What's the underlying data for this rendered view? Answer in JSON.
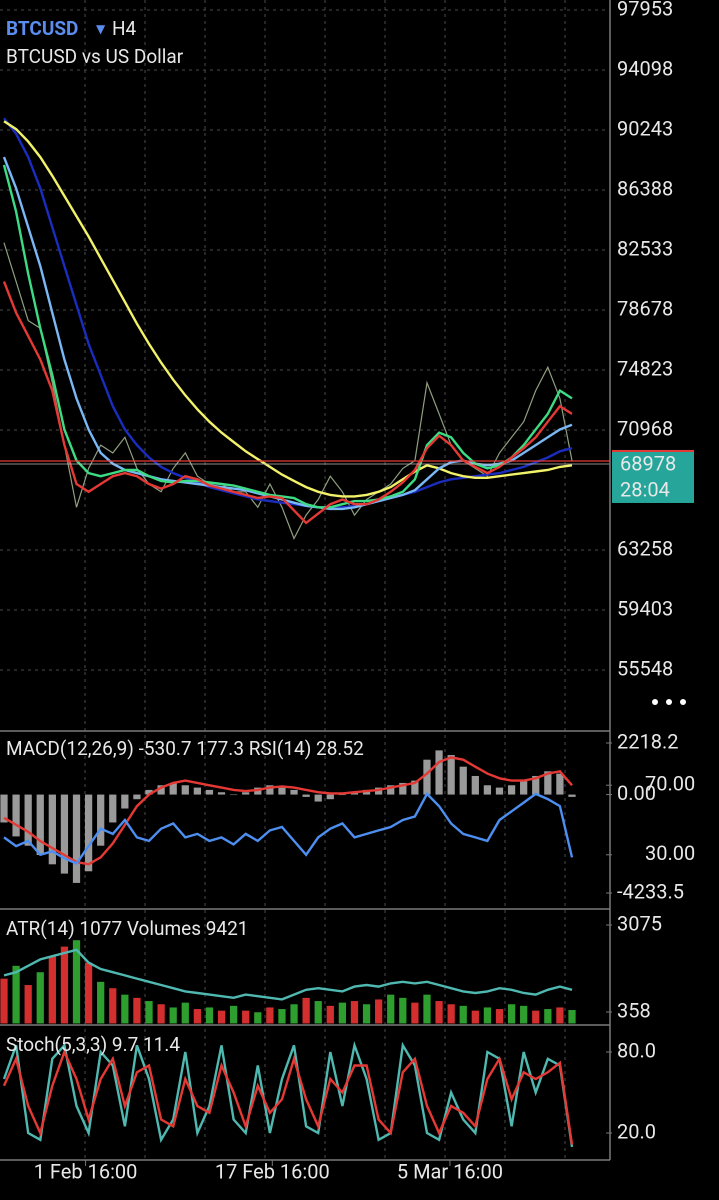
{
  "chart_data": [
    {
      "type": "line",
      "title": "BTCUSD",
      "timeframe": "H4",
      "subtitle": "BTCUSD vs US Dollar",
      "last_price": 68978,
      "countdown": "28:04",
      "price_color": "#e53935",
      "box_color": "#26a69a",
      "xlim": [
        0,
        47
      ],
      "ylim": [
        51693,
        98596
      ],
      "grid": true,
      "yticks": [
        97953,
        94098,
        90243,
        86388,
        82533,
        78678,
        74823,
        70968,
        63258,
        59403,
        55548
      ],
      "series": [
        {
          "color": "#8f9f7f",
          "values": [
            83000,
            80500,
            78000,
            77500,
            74000,
            70000,
            66000,
            68500,
            70000,
            69500,
            70500,
            68500,
            67500,
            67000,
            68500,
            69500,
            68000,
            67500,
            67500,
            67000,
            67000,
            66000,
            67500,
            66000,
            64000,
            65500,
            66500,
            68000,
            67000,
            65500,
            66500,
            67000,
            67500,
            68500,
            69000,
            74000,
            72000,
            70000,
            69000,
            68500,
            68000,
            69500,
            70500,
            71500,
            73500,
            75000,
            73000,
            69000
          ]
        },
        {
          "color": "#1a2dbf",
          "values": [
            91000,
            90000,
            88500,
            86500,
            84000,
            81500,
            79000,
            76500,
            74500,
            72500,
            71000,
            70000,
            69200,
            68600,
            68200,
            67900,
            67600,
            67300,
            67100,
            66900,
            66700,
            66500,
            66400,
            66300,
            66200,
            66100,
            66000,
            66000,
            66000,
            66100,
            66200,
            66400,
            66600,
            66800,
            67000,
            67300,
            67600,
            67800,
            67900,
            68000,
            68100,
            68200,
            68400,
            68600,
            68900,
            69200,
            69600,
            69800
          ]
        },
        {
          "color": "#f2f26a",
          "values": [
            90800,
            90300,
            89500,
            88500,
            87300,
            86000,
            84700,
            83400,
            82000,
            80600,
            79200,
            77800,
            76500,
            75300,
            74200,
            73200,
            72300,
            71500,
            70800,
            70200,
            69600,
            69100,
            68600,
            68100,
            67700,
            67300,
            67000,
            66800,
            66700,
            66700,
            66800,
            67000,
            67300,
            67800,
            68300,
            68700,
            68500,
            68200,
            68000,
            67900,
            67900,
            68000,
            68100,
            68200,
            68300,
            68400,
            68600,
            68700
          ]
        },
        {
          "color": "#7ab8f5",
          "values": [
            88500,
            86500,
            84000,
            81500,
            78500,
            75500,
            73000,
            71000,
            69500,
            68800,
            68400,
            68200,
            68000,
            67800,
            67700,
            67600,
            67500,
            67400,
            67300,
            67200,
            67100,
            66900,
            66700,
            66500,
            66300,
            66100,
            66000,
            65900,
            65900,
            66000,
            66200,
            66400,
            66600,
            66800,
            67100,
            67800,
            68500,
            68900,
            69000,
            68800,
            68700,
            68800,
            69000,
            69500,
            70000,
            70500,
            71000,
            71300
          ]
        },
        {
          "color": "#3ddc84",
          "values": [
            88000,
            85000,
            81000,
            77500,
            74500,
            71000,
            69000,
            68200,
            68000,
            68200,
            68400,
            68400,
            68000,
            67700,
            67600,
            67700,
            67700,
            67600,
            67500,
            67400,
            67200,
            67000,
            66800,
            66700,
            66600,
            66200,
            66000,
            66000,
            66200,
            66400,
            66400,
            66500,
            66700,
            67000,
            67800,
            70000,
            70800,
            70500,
            69500,
            68800,
            68500,
            68700,
            69200,
            70000,
            71000,
            72000,
            73500,
            73000
          ]
        },
        {
          "color": "#e53935",
          "values": [
            80500,
            78500,
            77000,
            75500,
            73500,
            70000,
            67500,
            67000,
            67500,
            68000,
            68200,
            68000,
            67500,
            67200,
            67500,
            68000,
            67800,
            67400,
            67200,
            67000,
            66800,
            66600,
            66700,
            66600,
            65800,
            65000,
            65600,
            66200,
            66500,
            66200,
            66200,
            66500,
            67000,
            67600,
            68400,
            69800,
            70600,
            70000,
            69000,
            68600,
            68200,
            68600,
            69200,
            69800,
            70500,
            71500,
            72500,
            72000
          ]
        }
      ]
    },
    {
      "type": "combo",
      "title": "MACD(12,26,9) -530.7 177.3 RSI(14) 28.52",
      "xlim": [
        0,
        47
      ],
      "ylim": [
        -4836,
        2648
      ],
      "y2lim": [
        0,
        100
      ],
      "yticks": [
        2218.2,
        {
          "value": 0,
          "label": "0.00"
        },
        -4233.5
      ],
      "y2ticks": [
        {
          "value": 70,
          "label": "70.00"
        },
        {
          "value": 30,
          "label": "30.00"
        }
      ],
      "series": [
        {
          "style": "bar",
          "color": "#9a9a9a",
          "values": [
            -1200,
            -1800,
            -2200,
            -2600,
            -3000,
            -3400,
            -3800,
            -3300,
            -2200,
            -1200,
            -600,
            -200,
            200,
            400,
            500,
            400,
            300,
            200,
            100,
            0,
            100,
            300,
            400,
            300,
            200,
            -100,
            -300,
            -200,
            0,
            100,
            200,
            300,
            400,
            500,
            600,
            1500,
            1900,
            1700,
            1200,
            800,
            400,
            300,
            400,
            600,
            800,
            1000,
            900,
            -100
          ]
        },
        {
          "style": "line",
          "color": "#e53935",
          "values": [
            -1000,
            -1300,
            -1600,
            -2000,
            -2300,
            -2600,
            -2900,
            -3000,
            -2700,
            -2100,
            -1300,
            -500,
            0,
            300,
            500,
            600,
            500,
            400,
            300,
            200,
            150,
            200,
            300,
            350,
            300,
            200,
            100,
            50,
            50,
            100,
            150,
            200,
            300,
            400,
            500,
            900,
            1400,
            1600,
            1500,
            1200,
            900,
            700,
            600,
            600,
            700,
            900,
            1000,
            400
          ]
        },
        {
          "style": "line",
          "axis": "y2",
          "color": "#4d8ff0",
          "values": [
            40,
            35,
            38,
            30,
            32,
            28,
            25,
            35,
            45,
            42,
            50,
            40,
            38,
            45,
            48,
            40,
            42,
            38,
            40,
            36,
            42,
            38,
            44,
            46,
            38,
            30,
            40,
            45,
            48,
            40,
            42,
            44,
            46,
            50,
            52,
            65,
            58,
            48,
            42,
            40,
            38,
            50,
            55,
            60,
            65,
            62,
            58,
            28.52
          ]
        }
      ]
    },
    {
      "type": "combo",
      "title": "ATR(14) 1077 Volumes 9421",
      "xlim": [
        0,
        47
      ],
      "ylim": [
        -48,
        3481
      ],
      "yticks": [
        3075,
        358
      ],
      "series": [
        {
          "style": "bar",
          "colors": [
            "#d32f2f",
            "#2e9e2e",
            "#d32f2f",
            "#2e9e2e",
            "#d32f2f",
            "#d32f2f",
            "#2e9e2e",
            "#d32f2f",
            "#2e9e2e",
            "#d32f2f",
            "#2e9e2e",
            "#d32f2f",
            "#2e9e2e",
            "#d32f2f",
            "#2e9e2e",
            "#2e9e2e",
            "#d32f2f",
            "#2e9e2e",
            "#d32f2f",
            "#2e9e2e",
            "#d32f2f",
            "#2e9e2e",
            "#d32f2f",
            "#2e9e2e",
            "#2e9e2e",
            "#d32f2f",
            "#2e9e2e",
            "#d32f2f",
            "#2e9e2e",
            "#d32f2f",
            "#2e9e2e",
            "#d32f2f",
            "#2e9e2e",
            "#2e9e2e",
            "#d32f2f",
            "#2e9e2e",
            "#d32f2f",
            "#d32f2f",
            "#2e9e2e",
            "#d32f2f",
            "#2e9e2e",
            "#d32f2f",
            "#2e9e2e",
            "#2e9e2e",
            "#d32f2f",
            "#2e9e2e",
            "#d32f2f",
            "#2e9e2e"
          ],
          "values": [
            1400,
            1800,
            1200,
            1600,
            2100,
            2400,
            2600,
            1900,
            1300,
            1100,
            900,
            800,
            700,
            600,
            500,
            650,
            450,
            500,
            400,
            550,
            400,
            350,
            500,
            450,
            600,
            800,
            700,
            550,
            650,
            700,
            600,
            750,
            900,
            800,
            650,
            900,
            700,
            600,
            550,
            400,
            500,
            450,
            600,
            550,
            400,
            450,
            500,
            420
          ]
        },
        {
          "style": "line",
          "color": "#4fb8b0",
          "values": [
            1500,
            1600,
            1800,
            2000,
            2100,
            2200,
            2300,
            1900,
            1700,
            1600,
            1500,
            1400,
            1300,
            1200,
            1100,
            1000,
            950,
            900,
            850,
            800,
            900,
            850,
            800,
            750,
            900,
            1050,
            1100,
            1050,
            1000,
            1150,
            1200,
            1150,
            1250,
            1300,
            1250,
            1300,
            1200,
            1100,
            1000,
            950,
            1000,
            1100,
            1050,
            950,
            900,
            1050,
            1150,
            1050
          ]
        }
      ]
    },
    {
      "type": "line",
      "title": "Stoch(5,3,3) 9.7 11.4",
      "xlim": [
        0,
        47
      ],
      "ylim": [
        0,
        100
      ],
      "yticks": [
        {
          "value": 80,
          "label": "80.0"
        },
        {
          "value": 20,
          "label": "20.0"
        }
      ],
      "xticks": [
        {
          "value": 6.75,
          "label": "1 Feb 16:00"
        },
        {
          "value": 22.2,
          "label": "17 Feb 16:00"
        },
        {
          "value": 36.9,
          "label": "5 Mar 16:00"
        }
      ],
      "series": [
        {
          "color": "#4fb8b0",
          "values": [
            60,
            85,
            20,
            15,
            75,
            85,
            40,
            20,
            80,
            70,
            25,
            85,
            60,
            15,
            30,
            80,
            20,
            40,
            85,
            30,
            20,
            70,
            20,
            60,
            85,
            25,
            20,
            80,
            40,
            85,
            60,
            15,
            20,
            85,
            70,
            20,
            15,
            50,
            30,
            20,
            80,
            75,
            25,
            80,
            50,
            75,
            70,
            9.7
          ]
        },
        {
          "color": "#e53935",
          "values": [
            55,
            75,
            40,
            20,
            55,
            80,
            60,
            30,
            60,
            75,
            40,
            65,
            70,
            30,
            25,
            60,
            40,
            35,
            70,
            50,
            25,
            55,
            35,
            45,
            75,
            45,
            25,
            60,
            50,
            70,
            70,
            30,
            20,
            65,
            75,
            40,
            20,
            40,
            35,
            25,
            60,
            75,
            45,
            65,
            60,
            65,
            72,
            11.4
          ]
        }
      ]
    }
  ]
}
